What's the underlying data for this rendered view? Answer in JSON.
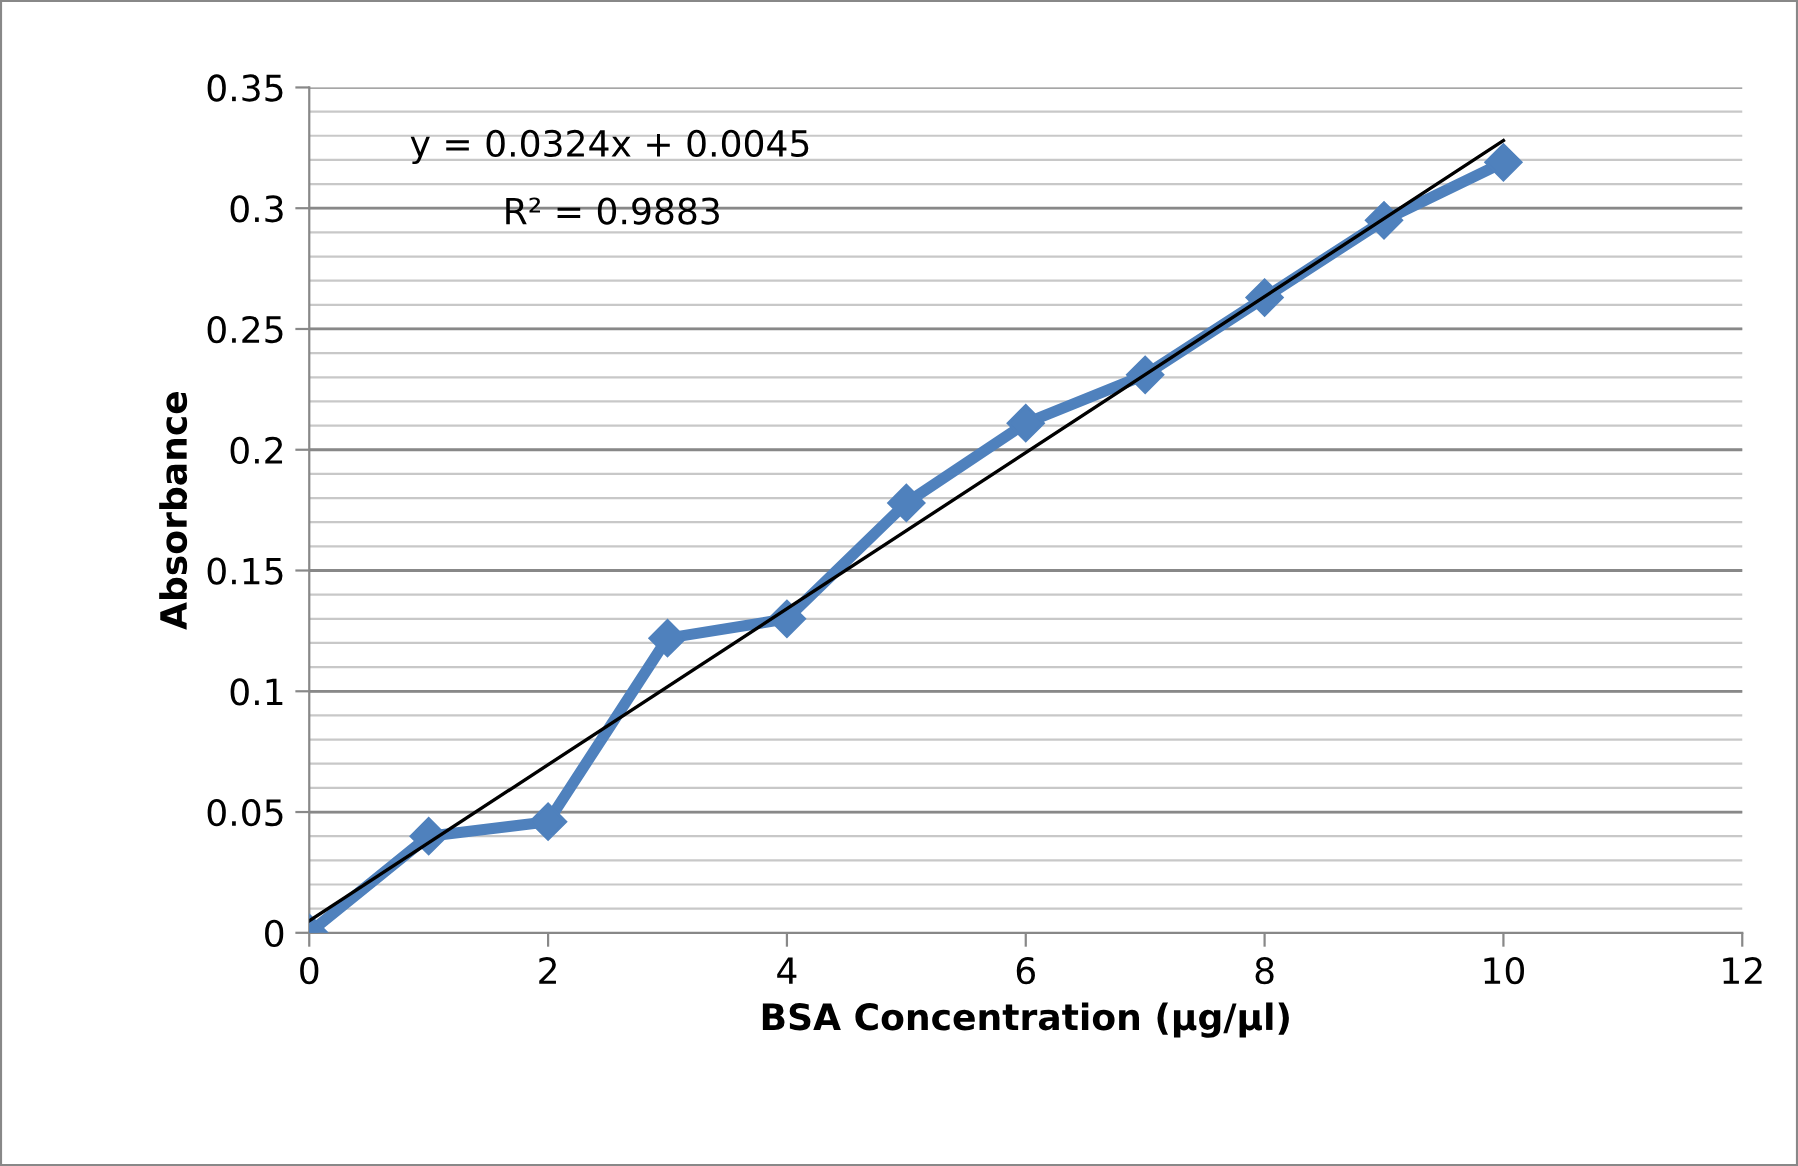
{
  "chart_data": {
    "type": "line",
    "xlabel": "BSA Concentration (µg/µl)",
    "ylabel": "Absorbance",
    "x": [
      0,
      1,
      2,
      3,
      4,
      5,
      6,
      7,
      8,
      9,
      10
    ],
    "series": [
      {
        "color": "#4f81bd",
        "marker": "diamond",
        "values": [
          0,
          0.04,
          0.046,
          0.122,
          0.13,
          0.178,
          0.211,
          0.231,
          0.263,
          0.295,
          0.319
        ]
      },
      {
        "type": "line",
        "color": "#000000",
        "marker": "none",
        "x": [
          0,
          10
        ],
        "values": [
          0.005,
          0.328
        ]
      }
    ],
    "annotations": [
      "y = 0.0324x + 0.0045",
      "R² = 0.9883"
    ],
    "xlim": [
      0,
      12
    ],
    "xticks": [
      0,
      2,
      4,
      6,
      8,
      10,
      12
    ],
    "ylim": [
      0,
      0.35
    ],
    "yticks": [
      0,
      0.05,
      0.1,
      0.15,
      0.2,
      0.25,
      0.3,
      0.35
    ],
    "grid": "y"
  }
}
